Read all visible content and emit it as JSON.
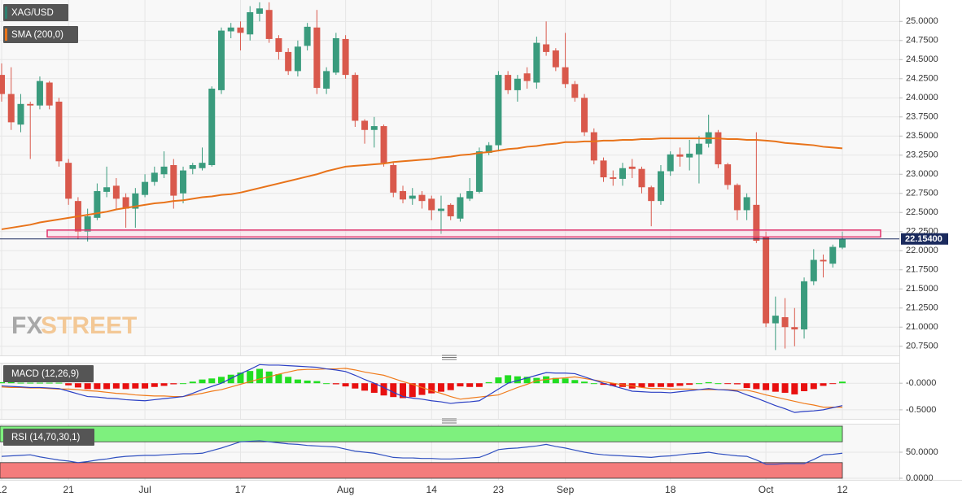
{
  "chart_data": [
    {
      "type": "candlestick",
      "series": [
        {
          "name": "XAG/USD",
          "color": "#2f7f6f",
          "up_color": "#3a9b7d",
          "down_color": "#d9594c",
          "open": [
            24.3,
            24.05,
            23.65,
            23.92,
            23.9,
            24.2,
            23.95,
            23.15,
            22.65,
            22.25,
            22.43,
            22.77,
            22.85,
            22.7,
            22.55,
            22.73,
            22.9,
            23.0,
            23.12,
            22.75,
            23.07,
            23.08,
            23.12,
            24.1,
            24.87,
            24.92,
            24.83,
            25.1,
            25.15,
            24.78,
            24.6,
            24.35,
            24.68,
            24.92,
            24.12,
            24.33,
            24.77,
            24.3,
            23.7,
            23.58,
            23.63,
            23.12,
            22.78,
            22.68,
            22.73,
            22.68,
            22.52,
            22.6,
            22.42,
            22.68,
            22.77,
            23.28,
            23.38,
            24.3,
            24.1,
            24.32,
            24.2,
            24.7,
            24.62,
            24.4,
            24.18,
            24.0,
            23.55,
            23.18,
            22.96,
            22.94,
            23.1,
            23.07,
            22.83,
            22.65,
            23.04,
            23.26,
            23.22,
            23.26,
            23.4,
            23.55,
            23.13,
            22.86,
            22.53,
            22.6,
            22.18,
            21.05,
            21.13,
            21.0,
            20.97,
            21.6,
            21.88,
            21.83,
            22.04
          ],
          "high": [
            24.45,
            24.4,
            24.05,
            23.95,
            24.28,
            24.22,
            24.0,
            23.2,
            22.7,
            22.55,
            22.88,
            23.1,
            22.95,
            22.75,
            22.82,
            23.0,
            23.1,
            23.3,
            23.2,
            23.1,
            23.15,
            23.35,
            24.15,
            24.92,
            24.98,
            25.0,
            25.2,
            25.25,
            25.25,
            24.82,
            24.65,
            24.75,
            24.98,
            25.15,
            24.4,
            24.85,
            24.82,
            24.33,
            23.72,
            23.75,
            23.65,
            23.15,
            22.85,
            22.82,
            22.78,
            22.72,
            22.72,
            22.62,
            22.75,
            22.95,
            23.35,
            23.42,
            24.35,
            24.35,
            24.3,
            24.4,
            24.8,
            25.0,
            24.65,
            24.85,
            24.22,
            24.05,
            23.6,
            23.22,
            23.05,
            23.15,
            23.2,
            23.1,
            22.85,
            23.12,
            23.3,
            23.35,
            23.45,
            23.5,
            23.78,
            23.58,
            23.15,
            22.88,
            22.75,
            23.55,
            22.25,
            21.4,
            21.38,
            21.25,
            21.65,
            22.02,
            21.95,
            22.08,
            22.25
          ],
          "low": [
            23.95,
            23.58,
            23.55,
            23.2,
            23.85,
            23.85,
            23.1,
            22.6,
            22.15,
            22.12,
            22.4,
            22.7,
            22.55,
            22.3,
            22.3,
            22.7,
            22.85,
            22.95,
            22.55,
            22.62,
            23.0,
            23.05,
            23.1,
            24.05,
            24.78,
            24.62,
            24.75,
            25.0,
            24.72,
            24.5,
            24.3,
            24.28,
            24.62,
            24.05,
            24.05,
            24.3,
            24.25,
            23.62,
            23.4,
            23.35,
            23.1,
            22.7,
            22.62,
            22.6,
            22.55,
            22.4,
            22.22,
            22.4,
            22.38,
            22.65,
            22.75,
            23.25,
            23.3,
            24.05,
            23.95,
            24.12,
            24.12,
            24.55,
            24.35,
            24.13,
            23.95,
            23.5,
            23.13,
            22.9,
            22.85,
            22.85,
            22.95,
            22.75,
            22.32,
            22.6,
            22.98,
            23.1,
            23.05,
            22.88,
            23.35,
            23.08,
            22.8,
            22.4,
            22.4,
            22.1,
            21.0,
            20.7,
            20.72,
            20.75,
            20.85,
            21.55,
            21.65,
            21.78,
            22.02
          ],
          "close": [
            24.05,
            23.68,
            23.92,
            23.9,
            24.22,
            23.9,
            23.17,
            22.68,
            22.25,
            22.45,
            22.78,
            22.83,
            22.68,
            22.55,
            22.75,
            22.9,
            23.02,
            23.1,
            22.72,
            23.05,
            23.12,
            23.15,
            24.12,
            24.88,
            24.92,
            24.85,
            25.12,
            25.17,
            24.77,
            24.6,
            24.35,
            24.67,
            24.93,
            24.13,
            24.35,
            24.78,
            24.3,
            23.7,
            23.58,
            23.63,
            23.15,
            22.76,
            22.67,
            22.72,
            22.65,
            22.53,
            22.55,
            22.45,
            22.7,
            22.78,
            23.3,
            23.38,
            24.3,
            24.1,
            24.25,
            24.22,
            24.72,
            24.6,
            24.4,
            24.18,
            24.0,
            23.55,
            23.18,
            22.96,
            22.94,
            23.08,
            23.07,
            22.83,
            22.65,
            23.04,
            23.26,
            23.23,
            23.27,
            23.4,
            23.55,
            23.13,
            22.86,
            22.53,
            22.7,
            22.13,
            21.05,
            21.15,
            21.0,
            20.97,
            21.6,
            21.88,
            21.86,
            22.05,
            22.154
          ]
        },
        {
          "name": "SMA (200,0)",
          "type": "line",
          "color": "#e8731a",
          "values": [
            22.28,
            22.3,
            22.32,
            22.34,
            22.37,
            22.39,
            22.41,
            22.43,
            22.45,
            22.47,
            22.49,
            22.51,
            22.54,
            22.56,
            22.58,
            22.6,
            22.62,
            22.63,
            22.65,
            22.66,
            22.68,
            22.7,
            22.71,
            22.73,
            22.74,
            22.76,
            22.79,
            22.82,
            22.85,
            22.88,
            22.91,
            22.94,
            22.97,
            23.0,
            23.04,
            23.07,
            23.1,
            23.11,
            23.12,
            23.13,
            23.14,
            23.16,
            23.17,
            23.18,
            23.19,
            23.2,
            23.22,
            23.23,
            23.25,
            23.26,
            23.28,
            23.29,
            23.31,
            23.33,
            23.34,
            23.36,
            23.37,
            23.39,
            23.4,
            23.42,
            23.42,
            23.43,
            23.43,
            23.44,
            23.44,
            23.45,
            23.45,
            23.46,
            23.46,
            23.47,
            23.47,
            23.47,
            23.47,
            23.47,
            23.47,
            23.47,
            23.46,
            23.46,
            23.45,
            23.45,
            23.44,
            23.43,
            23.41,
            23.4,
            23.39,
            23.38,
            23.36,
            23.35,
            23.34
          ]
        }
      ],
      "ylim": [
        20.63,
        25.28
      ],
      "yticks": [
        {
          "value": 20.75,
          "label": "20.7500"
        },
        {
          "value": 21,
          "label": "21.0000"
        },
        {
          "value": 21.25,
          "label": "21.2500"
        },
        {
          "value": 21.5,
          "label": "21.5000"
        },
        {
          "value": 21.75,
          "label": "21.7500"
        },
        {
          "value": 22,
          "label": "22.0000"
        },
        {
          "value": 22.25,
          "label": "22.2500"
        },
        {
          "value": 22.5,
          "label": "22.5000"
        },
        {
          "value": 22.75,
          "label": "22.7500"
        },
        {
          "value": 23,
          "label": "23.0000"
        },
        {
          "value": 23.25,
          "label": "23.2500"
        },
        {
          "value": 23.5,
          "label": "23.5000"
        },
        {
          "value": 23.75,
          "label": "23.7500"
        },
        {
          "value": 24,
          "label": "24.0000"
        },
        {
          "value": 24.25,
          "label": "24.2500"
        },
        {
          "value": 24.5,
          "label": "24.5000"
        },
        {
          "value": 24.75,
          "label": "24.7500"
        },
        {
          "value": 25,
          "label": "25.0000"
        }
      ],
      "grid": true,
      "zone": {
        "ylim": [
          22.18,
          22.27
        ],
        "color": "#e0306a"
      },
      "last_price": {
        "value": 22.154,
        "label": "22.15400",
        "color": "#1b2b5e"
      },
      "watermark": [
        "FX",
        "STREET"
      ]
    },
    {
      "type": "macd",
      "title": "MACD (12,26,9)",
      "histogram": {
        "up_color": "#22dd22",
        "down_color": "#e81010",
        "values": [
          0.02,
          0.02,
          0.01,
          0.01,
          0.01,
          0.01,
          0.01,
          -0.04,
          -0.08,
          -0.11,
          -0.11,
          -0.11,
          -0.1,
          -0.11,
          -0.1,
          -0.1,
          -0.07,
          -0.05,
          -0.02,
          0.0,
          0.03,
          0.07,
          0.09,
          0.12,
          0.16,
          0.2,
          0.23,
          0.27,
          0.22,
          0.17,
          0.12,
          0.07,
          0.05,
          0.04,
          0.0,
          -0.02,
          -0.06,
          -0.1,
          -0.14,
          -0.18,
          -0.23,
          -0.26,
          -0.28,
          -0.26,
          -0.22,
          -0.19,
          -0.16,
          -0.13,
          -0.06,
          -0.07,
          -0.07,
          0.02,
          0.11,
          0.15,
          0.13,
          0.12,
          0.1,
          0.13,
          0.1,
          0.09,
          0.06,
          0.03,
          0.0,
          -0.03,
          -0.05,
          -0.07,
          -0.1,
          -0.08,
          -0.07,
          -0.07,
          -0.07,
          -0.05,
          -0.03,
          0.0,
          0.02,
          0.0,
          -0.01,
          -0.02,
          -0.09,
          -0.11,
          -0.13,
          -0.16,
          -0.18,
          -0.21,
          -0.15,
          -0.11,
          -0.05,
          -0.01,
          0.03
        ]
      },
      "macd": {
        "color": "#2b3fc4",
        "values": [
          -0.05,
          -0.06,
          -0.07,
          -0.08,
          -0.08,
          -0.09,
          -0.1,
          -0.15,
          -0.2,
          -0.25,
          -0.26,
          -0.28,
          -0.29,
          -0.31,
          -0.32,
          -0.33,
          -0.31,
          -0.29,
          -0.27,
          -0.25,
          -0.19,
          -0.12,
          -0.06,
          0.0,
          0.09,
          0.18,
          0.26,
          0.35,
          0.34,
          0.34,
          0.33,
          0.32,
          0.31,
          0.3,
          0.27,
          0.25,
          0.22,
          0.15,
          0.07,
          0.0,
          -0.08,
          -0.17,
          -0.25,
          -0.28,
          -0.3,
          -0.33,
          -0.35,
          -0.38,
          -0.36,
          -0.35,
          -0.33,
          -0.22,
          -0.11,
          0.0,
          0.05,
          0.1,
          0.15,
          0.2,
          0.19,
          0.19,
          0.18,
          0.12,
          0.06,
          0.0,
          -0.05,
          -0.1,
          -0.15,
          -0.16,
          -0.17,
          -0.17,
          -0.18,
          -0.16,
          -0.14,
          -0.12,
          -0.1,
          -0.12,
          -0.13,
          -0.15,
          -0.22,
          -0.28,
          -0.35,
          -0.42,
          -0.48,
          -0.55,
          -0.53,
          -0.52,
          -0.5,
          -0.46,
          -0.42
        ]
      },
      "signal": {
        "color": "#f07a1a",
        "values": [
          -0.07,
          -0.08,
          -0.08,
          -0.09,
          -0.09,
          -0.1,
          -0.11,
          -0.11,
          -0.12,
          -0.14,
          -0.15,
          -0.17,
          -0.19,
          -0.2,
          -0.22,
          -0.23,
          -0.24,
          -0.24,
          -0.25,
          -0.25,
          -0.22,
          -0.19,
          -0.15,
          -0.12,
          -0.07,
          -0.02,
          0.03,
          0.08,
          0.12,
          0.17,
          0.21,
          0.25,
          0.26,
          0.26,
          0.27,
          0.27,
          0.28,
          0.25,
          0.21,
          0.18,
          0.15,
          0.09,
          0.03,
          -0.02,
          -0.08,
          -0.14,
          -0.19,
          -0.25,
          -0.3,
          -0.28,
          -0.26,
          -0.24,
          -0.22,
          -0.15,
          -0.08,
          -0.02,
          0.05,
          0.07,
          0.09,
          0.1,
          0.12,
          0.09,
          0.06,
          0.03,
          0.0,
          -0.03,
          -0.05,
          -0.08,
          -0.1,
          -0.1,
          -0.11,
          -0.11,
          -0.11,
          -0.12,
          -0.12,
          -0.12,
          -0.12,
          -0.13,
          -0.13,
          -0.17,
          -0.22,
          -0.26,
          -0.3,
          -0.34,
          -0.38,
          -0.41,
          -0.45,
          -0.45,
          -0.45
        ]
      },
      "ylim": [
        -0.67,
        0.37
      ],
      "yticks": [
        {
          "value": 0,
          "label": "-0.0000"
        },
        {
          "value": -0.5,
          "label": "-0.5000"
        }
      ]
    },
    {
      "type": "line",
      "title": "RSI (14,70,30,1)",
      "categories": [
        "12",
        null,
        null,
        null,
        null,
        null,
        null,
        "21",
        null,
        null,
        null,
        null,
        null,
        null,
        null,
        "Jul",
        null,
        null,
        null,
        null,
        null,
        null,
        null,
        null,
        null,
        "17",
        null,
        null,
        null,
        null,
        null,
        null,
        null,
        null,
        null,
        null,
        "Aug",
        null,
        null,
        null,
        null,
        null,
        null,
        null,
        null,
        "14",
        null,
        null,
        null,
        null,
        null,
        null,
        "23",
        null,
        null,
        null,
        null,
        null,
        null,
        "Sep",
        null,
        null,
        null,
        null,
        null,
        null,
        null,
        null,
        null,
        null,
        "18",
        null,
        null,
        null,
        null,
        null,
        null,
        null,
        null,
        null,
        "Oct",
        null,
        null,
        null,
        null,
        null,
        null,
        null,
        "12"
      ],
      "values": [
        42,
        43,
        44,
        45,
        41,
        38,
        35,
        33,
        30,
        32,
        35,
        37,
        40,
        42,
        43,
        44,
        44,
        45,
        46,
        47,
        47,
        48,
        53,
        58,
        64,
        70,
        71,
        72,
        70,
        68,
        66,
        65,
        63,
        62,
        61,
        60,
        56,
        52,
        50,
        48,
        44,
        40,
        39,
        39,
        38,
        38,
        37,
        37,
        38,
        39,
        40,
        47,
        55,
        57,
        58,
        60,
        62,
        65,
        61,
        58,
        54,
        50,
        47,
        45,
        44,
        43,
        42,
        41,
        40,
        42,
        43,
        45,
        47,
        48,
        50,
        47,
        45,
        43,
        42,
        35,
        27,
        27,
        28,
        28,
        28,
        36,
        45,
        46,
        48
      ],
      "color": "#3050c0",
      "bands": [
        {
          "from": 70,
          "to": 100,
          "color": "#7ef07e"
        },
        {
          "from": 0,
          "to": 30,
          "color": "#f47c7c"
        }
      ],
      "ylim": [
        0,
        100
      ],
      "yticks": [
        {
          "value": 50,
          "label": "50.0000"
        },
        {
          "value": 0,
          "label": "0.0000"
        }
      ]
    }
  ]
}
